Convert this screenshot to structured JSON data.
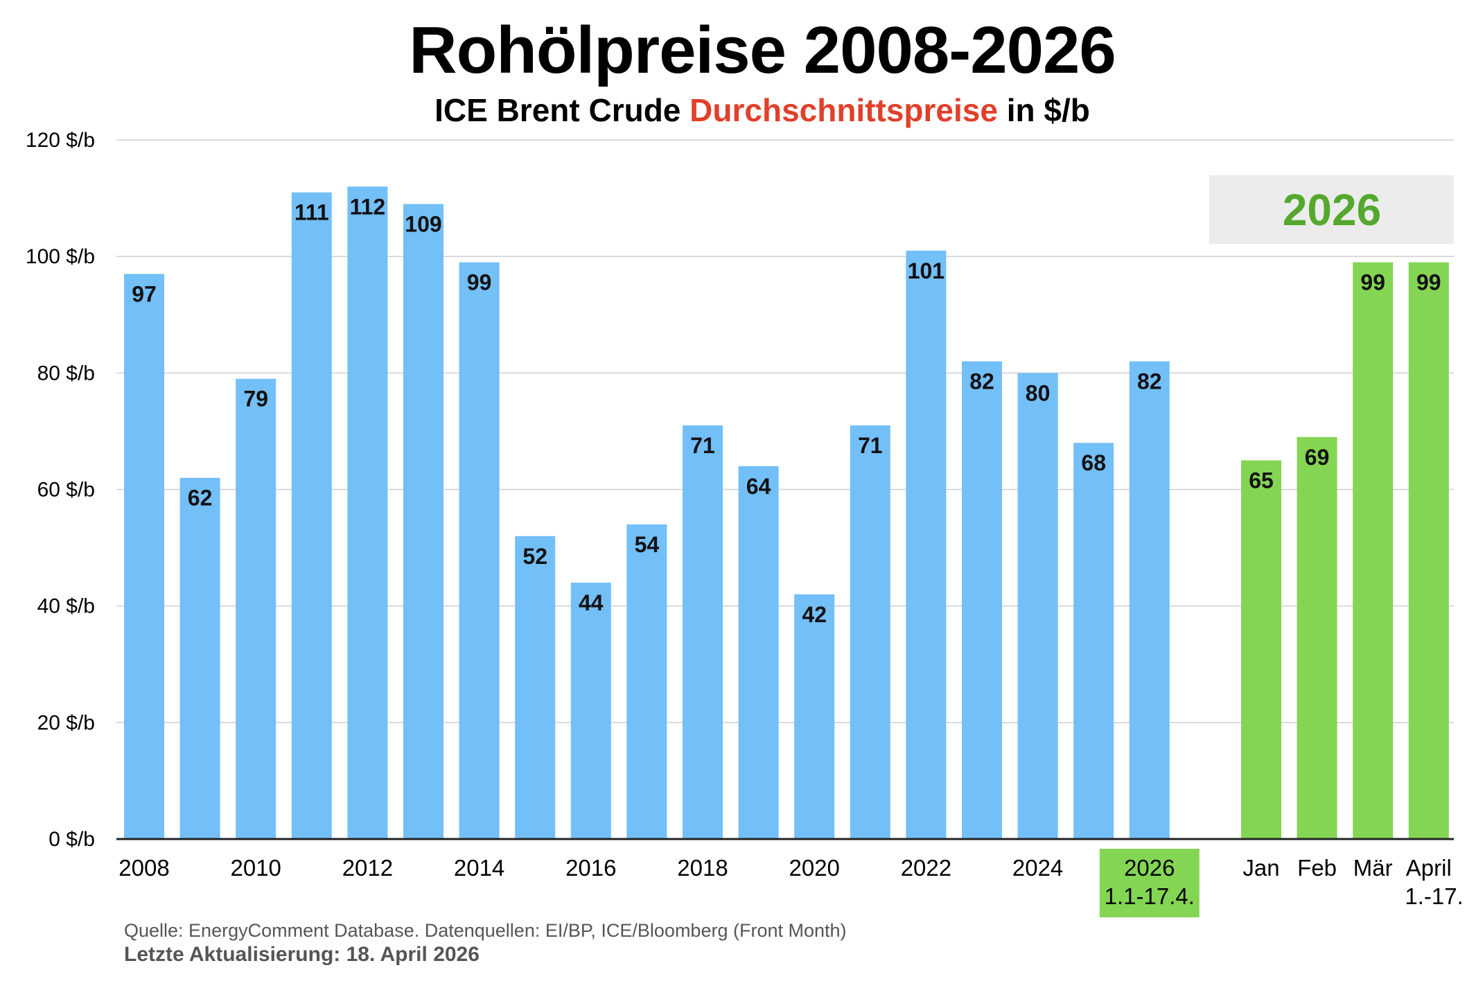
{
  "chart_data": {
    "type": "bar",
    "title": "Rohölpreise 2008-2026",
    "subtitle_parts": [
      "ICE Brent Crude ",
      "Durchschnittspreise",
      " in $/b"
    ],
    "ylabel": "$/b",
    "ylim": [
      0,
      120
    ],
    "yticks": [
      0,
      20,
      40,
      60,
      80,
      100,
      120
    ],
    "ytick_suffix": " $/b",
    "grid": true,
    "annual": {
      "categories": [
        "2008",
        "2009",
        "2010",
        "2011",
        "2012",
        "2013",
        "2014",
        "2015",
        "2016",
        "2017",
        "2018",
        "2019",
        "2020",
        "2021",
        "2022",
        "2023",
        "2024",
        "2025",
        "2026"
      ],
      "values": [
        97,
        62,
        79,
        111,
        112,
        109,
        99,
        52,
        44,
        54,
        71,
        64,
        42,
        71,
        101,
        82,
        80,
        68,
        82
      ],
      "tick_labels": [
        "2008",
        "",
        "2010",
        "",
        "2012",
        "",
        "2014",
        "",
        "2016",
        "",
        "2018",
        "",
        "2020",
        "",
        "2022",
        "",
        "2024",
        "",
        [
          "2026",
          "1.1-17.4."
        ]
      ],
      "color": "#73bff8"
    },
    "monthly_2026": {
      "group_label": "2026",
      "categories": [
        "Jan",
        "Feb",
        "Mär",
        "April"
      ],
      "tick_labels": [
        [
          "Jan"
        ],
        [
          "Feb"
        ],
        [
          "Mär"
        ],
        [
          "April",
          "1.-17."
        ]
      ],
      "values": [
        65,
        69,
        99,
        99
      ],
      "color": "#84d554"
    },
    "colors": {
      "highlight_label_bg": "#84d554",
      "group_box_bg": "#ececec",
      "group_text": "#55a82e",
      "accent_red": "#e0402a"
    }
  },
  "footer": {
    "source": "Quelle: EnergyComment Database. Datenquellen: EI/BP, ICE/Bloomberg (Front Month)",
    "updated": "Letzte Aktualisierung: 18. April 2026"
  }
}
